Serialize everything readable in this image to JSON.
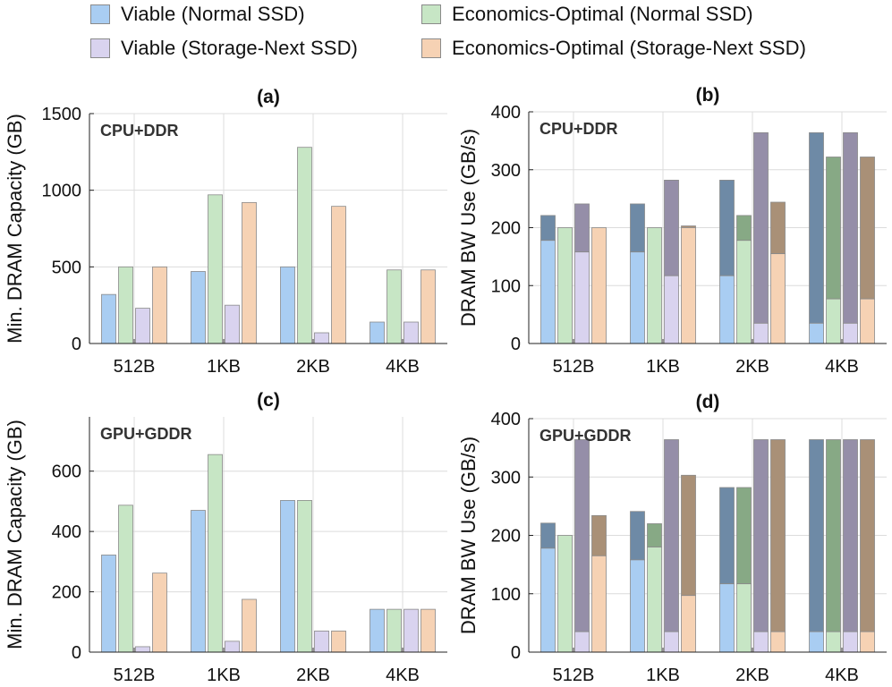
{
  "colors": {
    "viable_normal": "#a9cdf2",
    "econ_normal": "#c7e6c5",
    "viable_next": "#d9d3ef",
    "econ_next": "#f6d2b4",
    "bw_overlay_viable_normal": "#6e8aa6",
    "bw_overlay_econ_normal": "#87a985",
    "bw_overlay_viable_next": "#958ea8",
    "bw_overlay_econ_next": "#a99077",
    "grid": "#dcdcdc",
    "axis": "#222222"
  },
  "legend": {
    "items": [
      {
        "label": "Viable (Normal SSD)",
        "color_key": "viable_normal"
      },
      {
        "label": "Economics-Optimal (Normal SSD)",
        "color_key": "econ_normal"
      },
      {
        "label": "Viable (Storage-Next SSD)",
        "color_key": "viable_next"
      },
      {
        "label": "Economics-Optimal (Storage-Next SSD)",
        "color_key": "econ_next"
      }
    ]
  },
  "chart_data": [
    {
      "id": "a",
      "type": "bar",
      "title": "(a)",
      "annotation": "CPU+DDR",
      "ylabel": "Min. DRAM Capacity (GB)",
      "ylim": [
        0,
        1500
      ],
      "yticks": [
        0,
        500,
        1000,
        1500
      ],
      "categories": [
        "512B",
        "1KB",
        "2KB",
        "4KB"
      ],
      "series": [
        {
          "name": "Viable (Normal SSD)",
          "color_key": "viable_normal",
          "values": [
            320,
            470,
            500,
            140
          ]
        },
        {
          "name": "Economics-Optimal (Normal SSD)",
          "color_key": "econ_normal",
          "values": [
            500,
            970,
            1280,
            480
          ]
        },
        {
          "name": "Viable (Storage-Next SSD)",
          "color_key": "viable_next",
          "values": [
            230,
            250,
            70,
            140
          ]
        },
        {
          "name": "Economics-Optimal (Storage-Next SSD)",
          "color_key": "econ_next",
          "values": [
            500,
            920,
            895,
            480
          ]
        }
      ]
    },
    {
      "id": "b",
      "type": "bar",
      "title": "(b)",
      "annotation": "CPU+DDR",
      "ylabel": "DRAM BW Use (GB/s)",
      "ylim": [
        0,
        400
      ],
      "yticks": [
        0,
        100,
        200,
        300,
        400
      ],
      "categories": [
        "512B",
        "1KB",
        "2KB",
        "4KB"
      ],
      "series": [
        {
          "name": "Viable (Normal SSD)",
          "color_key": "viable_normal",
          "values": [
            178,
            158,
            117,
            35
          ],
          "totals": [
            221,
            241,
            282,
            364
          ]
        },
        {
          "name": "Economics-Optimal (Normal SSD)",
          "color_key": "econ_normal",
          "values": [
            200,
            200,
            178,
            77
          ],
          "totals": [
            200,
            200,
            221,
            322
          ]
        },
        {
          "name": "Viable (Storage-Next SSD)",
          "color_key": "viable_next",
          "values": [
            158,
            117,
            35,
            35
          ],
          "totals": [
            241,
            282,
            364,
            364
          ]
        },
        {
          "name": "Economics-Optimal (Storage-Next SSD)",
          "color_key": "econ_next",
          "values": [
            200,
            200,
            155,
            77
          ],
          "totals": [
            200,
            203,
            244,
            322
          ]
        }
      ]
    },
    {
      "id": "c",
      "type": "bar",
      "title": "(c)",
      "annotation": "GPU+GDDR",
      "ylabel": "Min. DRAM Capacity (GB)",
      "ylim": [
        0,
        780
      ],
      "yticks": [
        0,
        200,
        400,
        600
      ],
      "categories": [
        "512B",
        "1KB",
        "2KB",
        "4KB"
      ],
      "series": [
        {
          "name": "Viable (Normal SSD)",
          "color_key": "viable_normal",
          "values": [
            322,
            470,
            503,
            142
          ]
        },
        {
          "name": "Economics-Optimal (Normal SSD)",
          "color_key": "econ_normal",
          "values": [
            487,
            655,
            503,
            142
          ]
        },
        {
          "name": "Viable (Storage-Next SSD)",
          "color_key": "viable_next",
          "values": [
            18,
            36,
            70,
            142
          ]
        },
        {
          "name": "Economics-Optimal (Storage-Next SSD)",
          "color_key": "econ_next",
          "values": [
            262,
            175,
            70,
            142
          ]
        }
      ]
    },
    {
      "id": "d",
      "type": "bar",
      "title": "(d)",
      "annotation": "GPU+GDDR",
      "ylabel": "DRAM BW Use (GB/s)",
      "ylim": [
        0,
        400
      ],
      "yticks": [
        0,
        100,
        200,
        300,
        400
      ],
      "categories": [
        "512B",
        "1KB",
        "2KB",
        "4KB"
      ],
      "series": [
        {
          "name": "Viable (Normal SSD)",
          "color_key": "viable_normal",
          "values": [
            178,
            158,
            117,
            35
          ],
          "totals": [
            221,
            241,
            282,
            364
          ]
        },
        {
          "name": "Economics-Optimal (Normal SSD)",
          "color_key": "econ_normal",
          "values": [
            200,
            180,
            117,
            35
          ],
          "totals": [
            200,
            220,
            282,
            364
          ]
        },
        {
          "name": "Viable (Storage-Next SSD)",
          "color_key": "viable_next",
          "values": [
            35,
            35,
            35,
            35
          ],
          "totals": [
            364,
            364,
            364,
            364
          ]
        },
        {
          "name": "Economics-Optimal (Storage-Next SSD)",
          "color_key": "econ_next",
          "values": [
            165,
            97,
            35,
            35
          ],
          "totals": [
            234,
            303,
            364,
            364
          ]
        }
      ]
    }
  ]
}
